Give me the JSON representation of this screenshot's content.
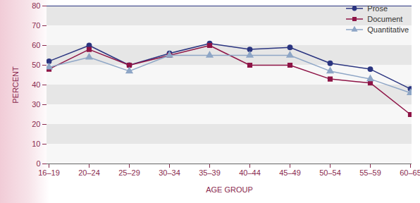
{
  "chart_data": {
    "type": "line",
    "x_label": "AGE GROUP",
    "y_label": "PERCENT",
    "categories": [
      "16–19",
      "20–24",
      "25–29",
      "30–34",
      "35–39",
      "40–44",
      "45–49",
      "50–54",
      "55–59",
      "60–65"
    ],
    "series": [
      {
        "name": "Prose",
        "color": "#2b3580",
        "marker": "circle",
        "values": [
          52,
          60,
          50,
          56,
          61,
          58,
          59,
          51,
          48,
          38
        ]
      },
      {
        "name": "Document",
        "color": "#8e1446",
        "marker": "square",
        "values": [
          48,
          58,
          50,
          55,
          60,
          50,
          50,
          43,
          41,
          25
        ]
      },
      {
        "name": "Quantitative",
        "color": "#8ea6c6",
        "marker": "triangle",
        "values": [
          49,
          54,
          47,
          55,
          55,
          55,
          55,
          47,
          43,
          36
        ]
      }
    ],
    "ylim": [
      0,
      80
    ],
    "yticks": [
      0,
      10,
      20,
      30,
      40,
      50,
      60,
      70,
      80
    ],
    "grid": true,
    "legend": "top-right"
  }
}
